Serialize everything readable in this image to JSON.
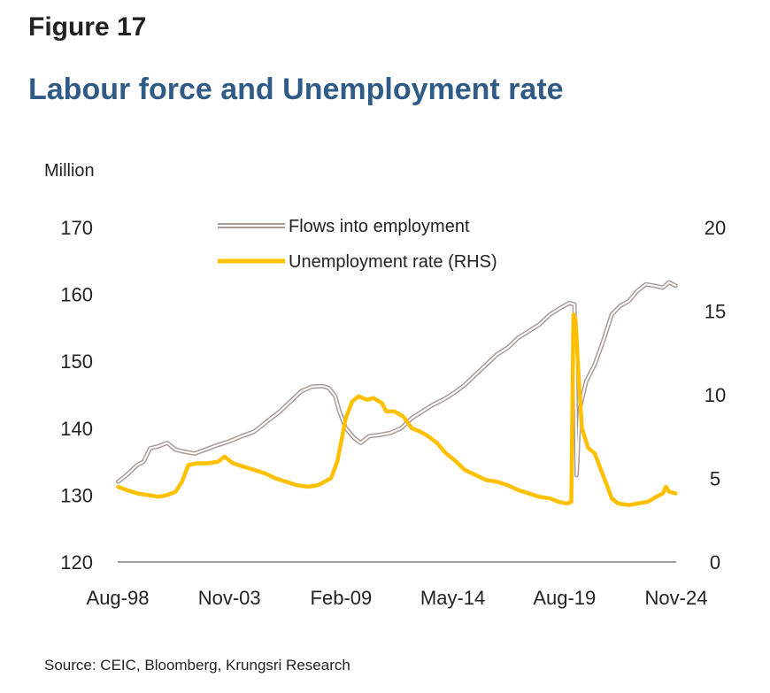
{
  "figure_label": "Figure 17",
  "title": "Labour force and Unemployment rate",
  "unit_label": "Million",
  "source": "Source: CEIC, Bloomberg, Krungsri Research",
  "colors": {
    "title": "#2f5b86",
    "flows_outline": "#a89a94",
    "unemployment": "#ffc000",
    "axis": "#808080"
  },
  "chart_data": {
    "type": "line",
    "x_unit": "year",
    "x_range": [
      1998.58,
      2024.83
    ],
    "x_ticks": [
      {
        "label": "Aug-98",
        "x": 1998.58
      },
      {
        "label": "Nov-03",
        "x": 2003.83
      },
      {
        "label": "Feb-09",
        "x": 2009.08
      },
      {
        "label": "May-14",
        "x": 2014.33
      },
      {
        "label": "Aug-19",
        "x": 2019.58
      },
      {
        "label": "Nov-24",
        "x": 2024.83
      }
    ],
    "y_left": {
      "ticks": [
        "170",
        "160",
        "150",
        "140",
        "130",
        "120"
      ],
      "range": [
        120,
        170
      ]
    },
    "y_right": {
      "ticks": [
        "20",
        "15",
        "10",
        "5",
        "0"
      ],
      "range": [
        0,
        20
      ]
    },
    "legend": {
      "placement": "top-center"
    },
    "series": [
      {
        "name": "Flows into employment",
        "axis": "left",
        "style": "double-line",
        "points": [
          [
            1998.6,
            132.0
          ],
          [
            1999.0,
            133.0
          ],
          [
            1999.5,
            134.5
          ],
          [
            1999.8,
            135.0
          ],
          [
            2000.1,
            137.0
          ],
          [
            2000.5,
            137.3
          ],
          [
            2000.9,
            137.8
          ],
          [
            2001.3,
            136.8
          ],
          [
            2001.7,
            136.5
          ],
          [
            2002.2,
            136.2
          ],
          [
            2002.7,
            136.8
          ],
          [
            2003.3,
            137.5
          ],
          [
            2003.8,
            138.0
          ],
          [
            2004.4,
            138.8
          ],
          [
            2005.0,
            139.5
          ],
          [
            2005.6,
            141.0
          ],
          [
            2006.2,
            142.5
          ],
          [
            2006.7,
            144.0
          ],
          [
            2007.2,
            145.5
          ],
          [
            2007.7,
            146.2
          ],
          [
            2008.2,
            146.3
          ],
          [
            2008.5,
            146.0
          ],
          [
            2008.8,
            144.8
          ],
          [
            2009.0,
            142.5
          ],
          [
            2009.3,
            140.0
          ],
          [
            2009.7,
            138.5
          ],
          [
            2010.0,
            137.8
          ],
          [
            2010.4,
            138.8
          ],
          [
            2010.9,
            139.0
          ],
          [
            2011.4,
            139.3
          ],
          [
            2011.9,
            140.0
          ],
          [
            2012.4,
            141.5
          ],
          [
            2012.9,
            142.5
          ],
          [
            2013.4,
            143.5
          ],
          [
            2013.9,
            144.3
          ],
          [
            2014.4,
            145.3
          ],
          [
            2014.9,
            146.5
          ],
          [
            2015.4,
            148.0
          ],
          [
            2015.9,
            149.5
          ],
          [
            2016.4,
            151.0
          ],
          [
            2016.9,
            152.0
          ],
          [
            2017.4,
            153.5
          ],
          [
            2017.9,
            154.5
          ],
          [
            2018.4,
            155.5
          ],
          [
            2018.9,
            157.0
          ],
          [
            2019.4,
            158.0
          ],
          [
            2019.8,
            158.7
          ],
          [
            2020.05,
            158.5
          ],
          [
            2020.15,
            133.0
          ],
          [
            2020.3,
            143.0
          ],
          [
            2020.6,
            147.0
          ],
          [
            2021.0,
            149.5
          ],
          [
            2021.4,
            153.0
          ],
          [
            2021.8,
            157.0
          ],
          [
            2022.2,
            158.3
          ],
          [
            2022.6,
            159.0
          ],
          [
            2023.0,
            160.5
          ],
          [
            2023.4,
            161.5
          ],
          [
            2023.8,
            161.3
          ],
          [
            2024.2,
            161.0
          ],
          [
            2024.5,
            161.8
          ],
          [
            2024.8,
            161.3
          ]
        ]
      },
      {
        "name": "Unemployment rate (RHS)",
        "axis": "right",
        "style": "thick-line",
        "points": [
          [
            1998.6,
            4.5
          ],
          [
            1999.0,
            4.3
          ],
          [
            1999.5,
            4.1
          ],
          [
            2000.0,
            4.0
          ],
          [
            2000.5,
            3.9
          ],
          [
            2000.9,
            4.0
          ],
          [
            2001.3,
            4.2
          ],
          [
            2001.6,
            4.8
          ],
          [
            2001.9,
            5.8
          ],
          [
            2002.3,
            5.9
          ],
          [
            2002.8,
            5.9
          ],
          [
            2003.3,
            6.0
          ],
          [
            2003.6,
            6.3
          ],
          [
            2004.0,
            5.9
          ],
          [
            2004.5,
            5.7
          ],
          [
            2005.0,
            5.5
          ],
          [
            2005.5,
            5.3
          ],
          [
            2006.0,
            5.0
          ],
          [
            2006.5,
            4.8
          ],
          [
            2007.0,
            4.6
          ],
          [
            2007.5,
            4.5
          ],
          [
            2008.0,
            4.6
          ],
          [
            2008.3,
            4.8
          ],
          [
            2008.6,
            5.0
          ],
          [
            2008.9,
            6.0
          ],
          [
            2009.1,
            7.3
          ],
          [
            2009.3,
            8.6
          ],
          [
            2009.6,
            9.6
          ],
          [
            2009.9,
            9.9
          ],
          [
            2010.3,
            9.7
          ],
          [
            2010.6,
            9.8
          ],
          [
            2011.0,
            9.5
          ],
          [
            2011.2,
            9.0
          ],
          [
            2011.6,
            9.0
          ],
          [
            2012.0,
            8.7
          ],
          [
            2012.4,
            8.0
          ],
          [
            2012.8,
            7.8
          ],
          [
            2013.2,
            7.5
          ],
          [
            2013.6,
            7.1
          ],
          [
            2014.0,
            6.5
          ],
          [
            2014.4,
            6.1
          ],
          [
            2014.9,
            5.5
          ],
          [
            2015.4,
            5.2
          ],
          [
            2015.9,
            4.9
          ],
          [
            2016.4,
            4.8
          ],
          [
            2016.9,
            4.6
          ],
          [
            2017.4,
            4.3
          ],
          [
            2017.9,
            4.1
          ],
          [
            2018.4,
            3.9
          ],
          [
            2018.9,
            3.8
          ],
          [
            2019.3,
            3.6
          ],
          [
            2019.7,
            3.5
          ],
          [
            2019.9,
            3.6
          ],
          [
            2020.0,
            14.8
          ],
          [
            2020.1,
            14.5
          ],
          [
            2020.25,
            11.0
          ],
          [
            2020.4,
            8.0
          ],
          [
            2020.7,
            6.8
          ],
          [
            2021.0,
            6.5
          ],
          [
            2021.3,
            5.5
          ],
          [
            2021.6,
            4.5
          ],
          [
            2021.8,
            3.8
          ],
          [
            2022.1,
            3.5
          ],
          [
            2022.6,
            3.4
          ],
          [
            2023.0,
            3.5
          ],
          [
            2023.5,
            3.6
          ],
          [
            2023.9,
            3.9
          ],
          [
            2024.2,
            4.1
          ],
          [
            2024.35,
            4.5
          ],
          [
            2024.5,
            4.2
          ],
          [
            2024.8,
            4.1
          ]
        ]
      }
    ]
  }
}
